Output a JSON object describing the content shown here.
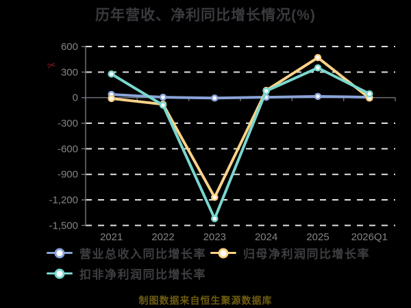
{
  "title": "历年营收、净利同比增长情况(%)",
  "footer": "制图数据来自恒生聚源数据库",
  "icons": {
    "scissors": "✂"
  },
  "colors": {
    "background": "#000000",
    "title_text": "#3a3a3f",
    "axis_line": "#6e7079",
    "tick_label": "#848484",
    "gridline": "#e3e3e3",
    "legend_text": "#3e3e42",
    "footer_text": "#6e5c10",
    "scissors": "#8b1717",
    "marker_fill": "#ffffff"
  },
  "chart_data": {
    "type": "line",
    "title": "历年营收、净利同比增长情况(%)",
    "categories": [
      "2021",
      "2022",
      "2023",
      "2024",
      "2025",
      "2026Q1"
    ],
    "series": [
      {
        "name": "营业总收入同比增长率",
        "color": "#8aa4d8",
        "values": [
          38,
          5,
          -5,
          5,
          15,
          5
        ]
      },
      {
        "name": "归母净利润同比增长率",
        "color": "#fbd288",
        "values": [
          -10,
          -78,
          -1170,
          85,
          470,
          -5
        ]
      },
      {
        "name": "扣非净利润同比增长率",
        "color": "#79d7cf",
        "values": [
          278,
          -88,
          -1420,
          78,
          350,
          45
        ]
      }
    ],
    "ylim": [
      -1500,
      600
    ],
    "yticks": [
      600,
      300,
      0,
      -300,
      -600,
      -900,
      -1200,
      -1500
    ],
    "xlabel": "",
    "ylabel": "",
    "grid": "horizontal-dashed",
    "legend_position": "bottom"
  }
}
